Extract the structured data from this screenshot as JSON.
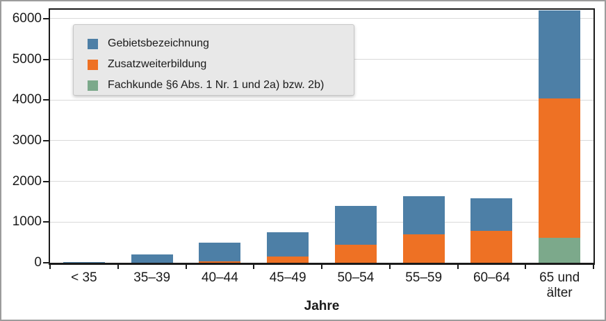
{
  "figure": {
    "background": "#ffffff",
    "outer_border_color": "#9c9c9c",
    "text_color": "#1a1a1a"
  },
  "chart_data": {
    "type": "bar",
    "stacked": true,
    "title": "",
    "xlabel": "Jahre",
    "ylabel": "",
    "ylim": [
      0,
      6220
    ],
    "yticks": [
      0,
      1000,
      2000,
      3000,
      4000,
      5000,
      6000
    ],
    "grid": true,
    "gridline_color": "#d9d9d9",
    "axis_color": "#1a1a1a",
    "legend_position": "upper left",
    "legend_background": "#e8e8e8",
    "legend_border_color": "#c6c6c6",
    "categories": [
      "< 35",
      "35–39",
      "40–44",
      "45–49",
      "50–54",
      "55–59",
      "60–64",
      "65 und älter"
    ],
    "series_note": "series listed bottom-to-top of stack; legend shows reverse order",
    "series": [
      {
        "name": "Fachkunde §6 Abs. 1 Nr. 1 und 2a) bzw. 2b)",
        "color": "#7ca98b",
        "values": [
          0,
          0,
          0,
          0,
          0,
          0,
          0,
          620
        ]
      },
      {
        "name": "Zusatzweiterbildung",
        "color": "#ee7124",
        "values": [
          0,
          0,
          30,
          150,
          450,
          700,
          790,
          3420
        ]
      },
      {
        "name": "Gebietsbezeichnung",
        "color": "#4d7fa6",
        "values": [
          25,
          200,
          460,
          600,
          940,
          940,
          800,
          2160
        ]
      }
    ],
    "totals": [
      25,
      200,
      490,
      750,
      1390,
      1640,
      1590,
      6200
    ]
  }
}
